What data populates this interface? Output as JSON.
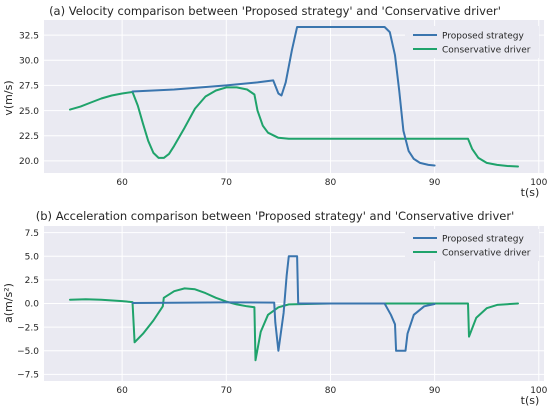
{
  "chart_data": [
    {
      "type": "line",
      "title": "(a) Velocity comparison between 'Proposed strategy' and 'Conservative driver'",
      "xlabel": "t(s)",
      "ylabel": "v(m/s)",
      "xlim": [
        52.5,
        100.5
      ],
      "ylim": [
        18.8,
        34.0
      ],
      "xticks": [
        60,
        70,
        80,
        90,
        100
      ],
      "yticks": [
        20.0,
        22.5,
        25.0,
        27.5,
        30.0,
        32.5
      ],
      "ytick_labels": [
        "20.0",
        "22.5",
        "25.0",
        "27.5",
        "30.0",
        "32.5"
      ],
      "grid": true,
      "legend_position": "top-right",
      "series": [
        {
          "name": "Proposed strategy",
          "color": "#3a75ae",
          "points": [
            [
              61,
              26.9
            ],
            [
              65,
              27.1
            ],
            [
              70,
              27.5
            ],
            [
              73,
              27.8
            ],
            [
              74.5,
              28.0
            ],
            [
              75,
              26.7
            ],
            [
              75.3,
              26.5
            ],
            [
              75.7,
              27.8
            ],
            [
              76.3,
              31.0
            ],
            [
              76.8,
              33.3
            ],
            [
              80,
              33.3
            ],
            [
              84,
              33.3
            ],
            [
              85.2,
              33.3
            ],
            [
              85.7,
              32.8
            ],
            [
              86.2,
              30.5
            ],
            [
              86.6,
              27.0
            ],
            [
              87.0,
              23.0
            ],
            [
              87.5,
              21.0
            ],
            [
              88.0,
              20.2
            ],
            [
              88.6,
              19.8
            ],
            [
              89.4,
              19.6
            ],
            [
              90,
              19.55
            ]
          ]
        },
        {
          "name": "Conservative driver",
          "color": "#1fa36b",
          "points": [
            [
              55,
              25.1
            ],
            [
              56,
              25.4
            ],
            [
              57,
              25.8
            ],
            [
              58,
              26.2
            ],
            [
              59,
              26.5
            ],
            [
              60,
              26.7
            ],
            [
              61,
              26.85
            ],
            [
              61.5,
              25.5
            ],
            [
              62,
              23.7
            ],
            [
              62.5,
              22.0
            ],
            [
              63,
              20.8
            ],
            [
              63.5,
              20.3
            ],
            [
              64,
              20.3
            ],
            [
              64.5,
              20.7
            ],
            [
              65,
              21.5
            ],
            [
              66,
              23.3
            ],
            [
              67,
              25.2
            ],
            [
              68,
              26.4
            ],
            [
              69,
              27.0
            ],
            [
              70,
              27.3
            ],
            [
              71,
              27.3
            ],
            [
              72,
              27.1
            ],
            [
              72.7,
              26.6
            ],
            [
              73.0,
              25.0
            ],
            [
              73.5,
              23.5
            ],
            [
              74,
              22.8
            ],
            [
              75,
              22.3
            ],
            [
              76,
              22.2
            ],
            [
              80,
              22.2
            ],
            [
              85,
              22.2
            ],
            [
              90,
              22.2
            ],
            [
              93.2,
              22.2
            ],
            [
              93.6,
              21.2
            ],
            [
              94.2,
              20.3
            ],
            [
              95,
              19.8
            ],
            [
              96,
              19.6
            ],
            [
              97,
              19.5
            ],
            [
              98,
              19.45
            ]
          ]
        }
      ]
    },
    {
      "type": "line",
      "title": "(b) Acceleration comparison between 'Proposed strategy' and 'Conservative driver'",
      "xlabel": "t(s)",
      "ylabel": "a(m/s²)",
      "xlim": [
        52.5,
        100.5
      ],
      "ylim": [
        -8.2,
        8.2
      ],
      "xticks": [
        60,
        70,
        80,
        90,
        100
      ],
      "yticks": [
        -7.5,
        -5.0,
        -2.5,
        0.0,
        2.5,
        5.0,
        7.5
      ],
      "ytick_labels": [
        "−7.5",
        "−5.0",
        "−2.5",
        "0.0",
        "2.5",
        "5.0",
        "7.5"
      ],
      "grid": true,
      "legend_position": "top-right",
      "series": [
        {
          "name": "Proposed strategy",
          "color": "#3a75ae",
          "points": [
            [
              61,
              0.05
            ],
            [
              65,
              0.08
            ],
            [
              70,
              0.12
            ],
            [
              74.6,
              0.1
            ],
            [
              74.7,
              -2.0
            ],
            [
              75.0,
              -5.0
            ],
            [
              75.5,
              -1.0
            ],
            [
              75.8,
              3.0
            ],
            [
              76.0,
              5.0
            ],
            [
              76.8,
              5.0
            ],
            [
              76.9,
              0.0
            ],
            [
              80,
              0.0
            ],
            [
              85.2,
              0.0
            ],
            [
              85.8,
              -1.2
            ],
            [
              86.2,
              -2.2
            ],
            [
              86.3,
              -5.0
            ],
            [
              87.2,
              -5.0
            ],
            [
              87.4,
              -3.2
            ],
            [
              88.0,
              -1.2
            ],
            [
              89.0,
              -0.3
            ],
            [
              90,
              -0.05
            ]
          ]
        },
        {
          "name": "Conservative driver",
          "color": "#1fa36b",
          "points": [
            [
              55,
              0.4
            ],
            [
              56.5,
              0.45
            ],
            [
              58,
              0.4
            ],
            [
              60,
              0.25
            ],
            [
              61,
              0.15
            ],
            [
              61.2,
              -4.1
            ],
            [
              62,
              -3.2
            ],
            [
              63,
              -1.8
            ],
            [
              63.9,
              -0.3
            ],
            [
              64.0,
              0.6
            ],
            [
              65,
              1.3
            ],
            [
              66,
              1.6
            ],
            [
              67,
              1.5
            ],
            [
              68,
              1.1
            ],
            [
              69,
              0.6
            ],
            [
              70,
              0.2
            ],
            [
              71,
              -0.1
            ],
            [
              72,
              -0.3
            ],
            [
              72.7,
              -0.4
            ],
            [
              72.8,
              -6.0
            ],
            [
              73.3,
              -3.0
            ],
            [
              74,
              -1.2
            ],
            [
              75,
              -0.4
            ],
            [
              76,
              -0.1
            ],
            [
              80,
              0.0
            ],
            [
              90,
              0.0
            ],
            [
              93.2,
              0.0
            ],
            [
              93.3,
              -3.5
            ],
            [
              94,
              -1.5
            ],
            [
              95,
              -0.5
            ],
            [
              96,
              -0.15
            ],
            [
              98,
              0.0
            ]
          ]
        }
      ]
    }
  ]
}
